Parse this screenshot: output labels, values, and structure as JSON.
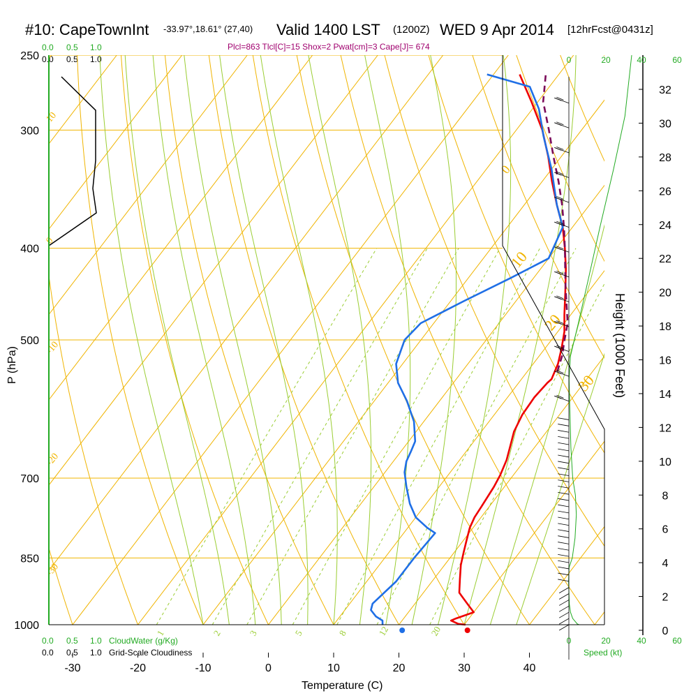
{
  "header": {
    "id": "#10: CapeTownInt",
    "coords": "-33.97°,18.61° (27,40)",
    "valid": "Valid 1400 LST",
    "zulu": "(1200Z)",
    "date": "WED 9 Apr 2014",
    "fcst": "[12hrFcst@0431z]",
    "params": "Plcl=863 Tlcl[C]=15 Shox=2 Pwat[cm]=3 Cape[J]= 674"
  },
  "labels": {
    "cloudwater": "CloudWater (g/Kg)",
    "cloudiness": "Grid-Scale Cloudiness",
    "speed": "Speed (kt)",
    "cw_ticks": [
      "0.0",
      "0.5",
      "1.0"
    ],
    "cloud_ticks": [
      "0.0",
      "0.5",
      "1.0"
    ]
  },
  "colors": {
    "isotherm": "#f0b400",
    "dry_adiabat": "#f0b400",
    "moist_adiabat": "#9acd32",
    "mixing_ratio": "#9acd32",
    "temperature": "#ee0000",
    "dewpoint": "#1f6fe6",
    "parcel": "#7b0b5a",
    "green_text": "#22aa22",
    "title_params": "#a0006e"
  },
  "chart_data": {
    "type": "line",
    "xlabel": "Temperature (C)",
    "ylabel": "P (hPa)",
    "y2label": "Height (1000 Feet)",
    "xlim": [
      -33,
      36
    ],
    "ylim": [
      1000,
      250
    ],
    "log_y": true,
    "x_ticks": [
      -30,
      -20,
      -10,
      0,
      10,
      20,
      30,
      40
    ],
    "p_ticks": [
      250,
      300,
      400,
      500,
      700,
      850,
      1000
    ],
    "height_ticks": [
      0,
      2,
      4,
      6,
      8,
      10,
      12,
      14,
      16,
      18,
      20,
      22,
      24,
      26,
      28,
      30,
      32
    ],
    "speed_ticks_bottom": [
      "0",
      "20",
      "40",
      "60"
    ],
    "speed_ticks_top": [
      "0",
      "20",
      "40",
      "60"
    ],
    "isotherm_labels": [
      "10",
      "0",
      "-10",
      "-20",
      "-30",
      "0",
      "10",
      "20",
      "30"
    ],
    "mixing_ratio_labels": [
      "1",
      "2",
      "3",
      "5",
      "8",
      "12",
      "20"
    ],
    "series": [
      {
        "name": "Temperature",
        "points": [
          [
            30.2,
            1000
          ],
          [
            29.0,
            998
          ],
          [
            27.5,
            990
          ],
          [
            28.0,
            985
          ],
          [
            30.0,
            970
          ],
          [
            28.5,
            955
          ],
          [
            26.5,
            935
          ],
          [
            25.5,
            925
          ],
          [
            24.0,
            895
          ],
          [
            22.5,
            865
          ],
          [
            21.5,
            840
          ],
          [
            20.5,
            815
          ],
          [
            19.5,
            790
          ],
          [
            19.0,
            770
          ],
          [
            18.8,
            750
          ],
          [
            18.4,
            715
          ],
          [
            18.0,
            695
          ],
          [
            17.2,
            670
          ],
          [
            16.0,
            645
          ],
          [
            15.0,
            625
          ],
          [
            14.3,
            600
          ],
          [
            14.1,
            575
          ],
          [
            14.4,
            555
          ],
          [
            14.6,
            550
          ],
          [
            13.8,
            530
          ],
          [
            12.5,
            510
          ],
          [
            11.0,
            490
          ],
          [
            9.0,
            470
          ],
          [
            6.5,
            445
          ],
          [
            3.8,
            420
          ],
          [
            1.3,
            400
          ],
          [
            -1.5,
            380
          ],
          [
            -5.0,
            360
          ],
          [
            -8.5,
            340
          ],
          [
            -12.0,
            320
          ],
          [
            -16.0,
            300
          ],
          [
            -21.0,
            280
          ],
          [
            -26.0,
            262
          ]
        ]
      },
      {
        "name": "Dewpoint",
        "points": [
          [
            17.5,
            1000
          ],
          [
            17.0,
            990
          ],
          [
            15.5,
            980
          ],
          [
            14.0,
            965
          ],
          [
            13.5,
            950
          ],
          [
            14.5,
            900
          ],
          [
            14.5,
            850
          ],
          [
            14.8,
            800
          ],
          [
            13.0,
            790
          ],
          [
            10.0,
            770
          ],
          [
            7.5,
            745
          ],
          [
            5.0,
            715
          ],
          [
            3.0,
            690
          ],
          [
            2.0,
            672
          ],
          [
            1.5,
            655
          ],
          [
            1.0,
            640
          ],
          [
            -1.5,
            610
          ],
          [
            -5.0,
            580
          ],
          [
            -8.5,
            555
          ],
          [
            -11.0,
            530
          ],
          [
            -12.5,
            500
          ],
          [
            -12.0,
            480
          ],
          [
            -8.0,
            455
          ],
          [
            -3.5,
            430
          ],
          [
            0.0,
            410
          ],
          [
            -1.5,
            380
          ],
          [
            -5.0,
            360
          ],
          [
            -10.0,
            330
          ],
          [
            -15.0,
            305
          ],
          [
            -19.0,
            285
          ],
          [
            -23.0,
            270
          ],
          [
            -31.0,
            262
          ]
        ]
      },
      {
        "name": "Parcel",
        "points": [
          [
            14.6,
            540
          ],
          [
            13.5,
            520
          ],
          [
            12.0,
            500
          ],
          [
            10.5,
            480
          ],
          [
            8.3,
            460
          ],
          [
            6.0,
            440
          ],
          [
            3.7,
            420
          ],
          [
            1.3,
            400
          ],
          [
            -1.3,
            380
          ],
          [
            -4.2,
            360
          ],
          [
            -7.5,
            340
          ],
          [
            -11.2,
            320
          ],
          [
            -15.0,
            300
          ],
          [
            -19.2,
            280
          ],
          [
            -22.0,
            262
          ]
        ]
      },
      {
        "name": "Height",
        "points": [
          [
            4.8,
            1000
          ],
          [
            4.0,
            998
          ],
          [
            2.0,
            985
          ],
          [
            1.0,
            970
          ],
          [
            0.5,
            950
          ],
          [
            0.2,
            900
          ],
          [
            0.4,
            870
          ],
          [
            1.8,
            850
          ],
          [
            3.0,
            810
          ],
          [
            3.6,
            765
          ],
          [
            3.2,
            730
          ],
          [
            2.0,
            700
          ],
          [
            1.2,
            650
          ],
          [
            0.8,
            600
          ],
          [
            0.4,
            550
          ],
          [
            1.0,
            520
          ],
          [
            4.5,
            480
          ],
          [
            9.0,
            430
          ],
          [
            14.0,
            380
          ],
          [
            20.0,
            330
          ],
          [
            25.0,
            290
          ],
          [
            28.0,
            250
          ]
        ]
      }
    ],
    "surface_points": [
      {
        "name": "surface-temperature",
        "T": 30.5,
        "p": 1000,
        "color": "#ee0000"
      },
      {
        "name": "surface-dewpoint",
        "T": 20.5,
        "p": 1000,
        "color": "#1f6fe6"
      }
    ]
  }
}
